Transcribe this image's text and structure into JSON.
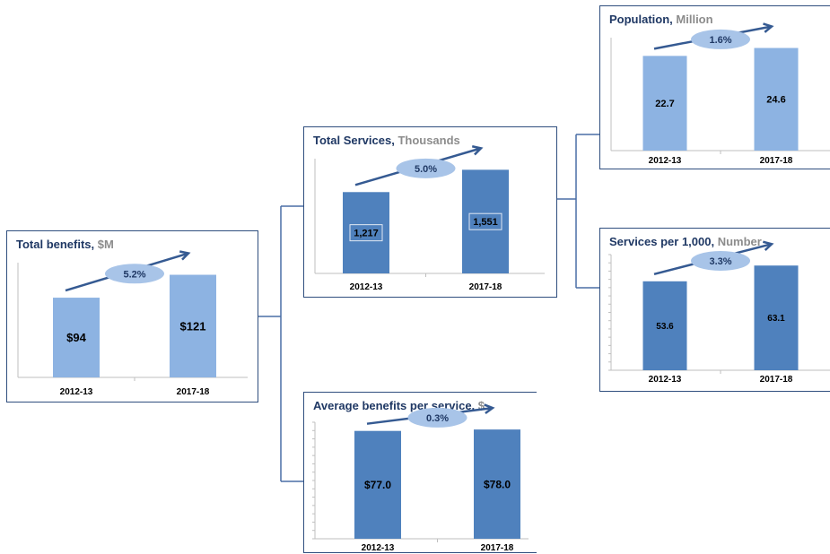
{
  "colors": {
    "light": "#8db3e2",
    "dark": "#4f81bd",
    "frame": "#2f4e7e",
    "arrow": "#355a92",
    "ellipse": "#a8c4e8"
  },
  "chart_data": [
    {
      "id": "total-benefits",
      "type": "bar",
      "title": "Total benefits,",
      "unit": "$M",
      "categories": [
        "2012-13",
        "2017-18"
      ],
      "values": [
        94,
        121
      ],
      "value_labels": [
        "$94",
        "$121"
      ],
      "growth": "5.2%",
      "ylim": [
        0,
        130
      ],
      "bar_color": "light"
    },
    {
      "id": "total-services",
      "type": "bar",
      "title": "Total Services,",
      "unit": "Thousands",
      "categories": [
        "2012-13",
        "2017-18"
      ],
      "values": [
        1217,
        1551
      ],
      "value_labels": [
        "1,217",
        "1,551"
      ],
      "growth": "5.0%",
      "ylim": [
        0,
        1650
      ],
      "bar_color": "dark"
    },
    {
      "id": "average-benefits",
      "type": "bar",
      "title": "Average benefits per service,",
      "unit": "$",
      "categories": [
        "2012-13",
        "2017-18"
      ],
      "values": [
        77.0,
        78.0
      ],
      "value_labels": [
        "$77.0",
        "$78.0"
      ],
      "growth": "0.3%",
      "ylim": [
        0,
        80
      ],
      "bar_color": "dark"
    },
    {
      "id": "population",
      "type": "bar",
      "title": "Population,",
      "unit": "Million",
      "categories": [
        "2012-13",
        "2017-18"
      ],
      "values": [
        22.7,
        24.6
      ],
      "value_labels": [
        "22.7",
        "24.6"
      ],
      "growth": "1.6%",
      "ylim": [
        0,
        26
      ],
      "bar_color": "light"
    },
    {
      "id": "services-per-1000",
      "type": "bar",
      "title": "Services per 1,000,",
      "unit": "Number",
      "categories": [
        "2012-13",
        "2017-18"
      ],
      "values": [
        53.6,
        63.1
      ],
      "value_labels": [
        "53.6",
        "63.1"
      ],
      "growth": "3.3%",
      "ylim": [
        0,
        67
      ],
      "bar_color": "dark"
    }
  ]
}
